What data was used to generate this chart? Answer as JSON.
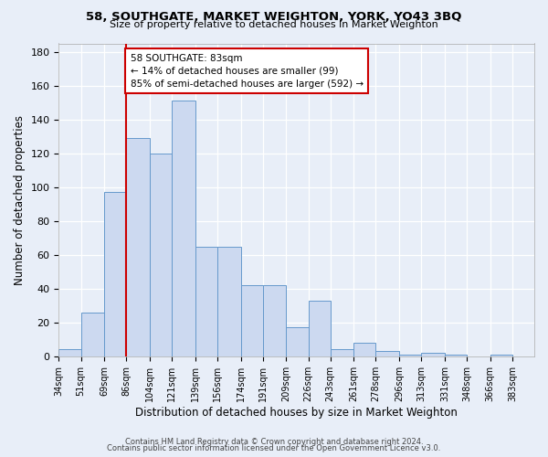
{
  "title": "58, SOUTHGATE, MARKET WEIGHTON, YORK, YO43 3BQ",
  "subtitle": "Size of property relative to detached houses in Market Weighton",
  "xlabel": "Distribution of detached houses by size in Market Weighton",
  "ylabel": "Number of detached properties",
  "bar_values": [
    4,
    26,
    97,
    129,
    120,
    151,
    65,
    65,
    42,
    42,
    17,
    33,
    4,
    8,
    3,
    1,
    2,
    1,
    0,
    1
  ],
  "bin_labels": [
    "34sqm",
    "51sqm",
    "69sqm",
    "86sqm",
    "104sqm",
    "121sqm",
    "139sqm",
    "156sqm",
    "174sqm",
    "191sqm",
    "209sqm",
    "226sqm",
    "243sqm",
    "261sqm",
    "278sqm",
    "296sqm",
    "313sqm",
    "331sqm",
    "348sqm",
    "366sqm",
    "383sqm"
  ],
  "bar_color": "#ccd9f0",
  "bar_edge_color": "#6699cc",
  "vline_x": 86,
  "vline_color": "#cc0000",
  "annotation_text": "58 SOUTHGATE: 83sqm\n← 14% of detached houses are smaller (99)\n85% of semi-detached houses are larger (592) →",
  "annotation_box_color": "#ffffff",
  "annotation_box_edge_color": "#cc0000",
  "ylim": [
    0,
    185
  ],
  "yticks": [
    0,
    20,
    40,
    60,
    80,
    100,
    120,
    140,
    160,
    180
  ],
  "footer1": "Contains HM Land Registry data © Crown copyright and database right 2024.",
  "footer2": "Contains public sector information licensed under the Open Government Licence v3.0.",
  "background_color": "#e8eef8",
  "plot_background": "#e8eef8",
  "grid_color": "#ffffff",
  "bin_edges": [
    34,
    51,
    69,
    86,
    104,
    121,
    139,
    156,
    174,
    191,
    209,
    226,
    243,
    261,
    278,
    296,
    313,
    331,
    348,
    366,
    383
  ]
}
